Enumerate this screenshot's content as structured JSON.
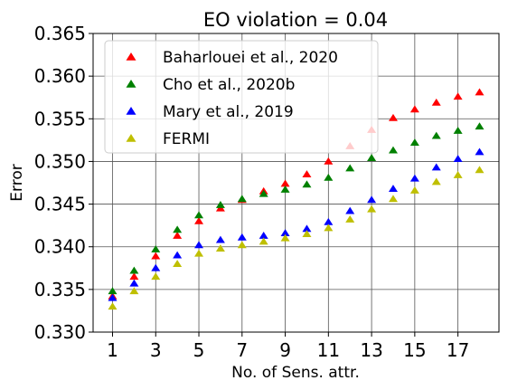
{
  "chart_data": {
    "type": "scatter",
    "title": "EO violation = 0.04",
    "xlabel": "No. of Sens. attr.",
    "ylabel": "Error",
    "xlim": [
      0.1,
      18.9
    ],
    "ylim": [
      0.33,
      0.365
    ],
    "xticks": [
      1,
      3,
      5,
      7,
      9,
      11,
      13,
      15,
      17
    ],
    "xtick_labels": [
      "1",
      "3",
      "5",
      "7",
      "9",
      "11",
      "13",
      "15",
      "17"
    ],
    "yticks": [
      0.33,
      0.335,
      0.34,
      0.345,
      0.35,
      0.355,
      0.36,
      0.365
    ],
    "ytick_labels": [
      "0.330",
      "0.335",
      "0.340",
      "0.345",
      "0.350",
      "0.355",
      "0.360",
      "0.365"
    ],
    "grid": true,
    "legend_position": "top-left",
    "x": [
      1,
      2,
      3,
      4,
      5,
      6,
      7,
      8,
      9,
      10,
      11,
      12,
      13,
      14,
      15,
      16,
      17,
      18
    ],
    "series": [
      {
        "name": "Baharlouei et al., 2020",
        "color": "#ff0000",
        "values": [
          0.3342,
          0.3365,
          0.3389,
          0.3413,
          0.343,
          0.3445,
          0.3455,
          0.3465,
          0.3474,
          0.3485,
          0.35,
          0.3518,
          0.3537,
          0.3551,
          0.3561,
          0.3569,
          0.3576,
          0.3581
        ]
      },
      {
        "name": "Cho et al., 2020b",
        "color": "#008000",
        "values": [
          0.3348,
          0.3372,
          0.3397,
          0.342,
          0.3437,
          0.3449,
          0.3456,
          0.3462,
          0.3467,
          0.3473,
          0.3481,
          0.3492,
          0.3504,
          0.3513,
          0.3522,
          0.353,
          0.3536,
          0.3541
        ]
      },
      {
        "name": "Mary et al., 2019",
        "color": "#0000ff",
        "values": [
          0.334,
          0.3357,
          0.3375,
          0.339,
          0.3402,
          0.3408,
          0.3411,
          0.3413,
          0.3416,
          0.3421,
          0.3429,
          0.3442,
          0.3455,
          0.3468,
          0.348,
          0.3493,
          0.3503,
          0.3511
        ]
      },
      {
        "name": "FERMI",
        "color": "#bfbf00",
        "values": [
          0.333,
          0.3348,
          0.3365,
          0.338,
          0.3392,
          0.3398,
          0.3402,
          0.3406,
          0.341,
          0.3415,
          0.3422,
          0.3432,
          0.3444,
          0.3456,
          0.3466,
          0.3476,
          0.3484,
          0.349
        ]
      }
    ]
  }
}
